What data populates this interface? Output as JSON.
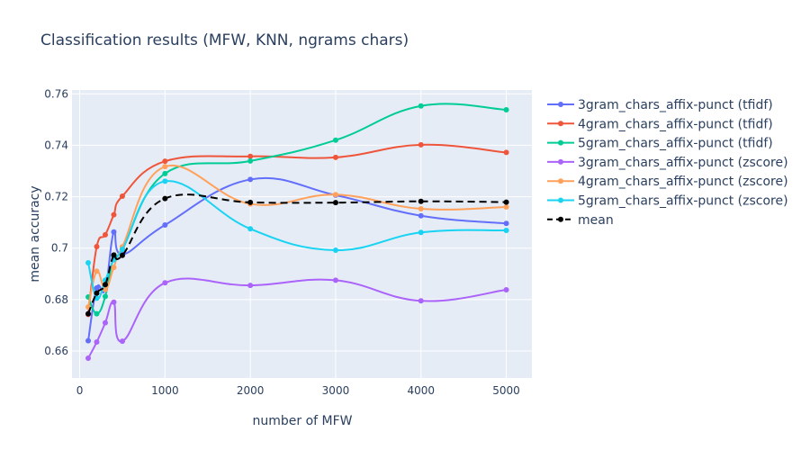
{
  "chart_data": {
    "type": "line",
    "title": "Classification results (MFW, KNN, ngrams chars)",
    "xlabel": "number of MFW",
    "ylabel": "mean accuracy",
    "xlim": [
      -90,
      5300
    ],
    "ylim": [
      0.6495,
      0.7615
    ],
    "xticks": [
      0,
      1000,
      2000,
      3000,
      4000,
      5000
    ],
    "xtick_labels": [
      "0",
      "1000",
      "2000",
      "3000",
      "4000",
      "5000"
    ],
    "yticks": [
      0.66,
      0.68,
      0.7,
      0.72,
      0.74,
      0.76
    ],
    "ytick_labels": [
      "0.66",
      "0.68",
      "0.7",
      "0.72",
      "0.74",
      "0.76"
    ],
    "grid": true,
    "legend_position": "right",
    "x": [
      100,
      200,
      300,
      400,
      500,
      1000,
      2000,
      3000,
      4000,
      5000
    ],
    "series": [
      {
        "name": "3gram_chars_affix-punct (tfidf)",
        "color": "#636efa",
        "dash": "solid",
        "values": [
          0.664,
          0.6845,
          0.684,
          0.7063,
          0.6975,
          0.709,
          0.7267,
          0.7206,
          0.7126,
          0.7096
        ]
      },
      {
        "name": "4gram_chars_affix-punct (tfidf)",
        "color": "#ef553b",
        "dash": "solid",
        "values": [
          0.6742,
          0.7006,
          0.7052,
          0.713,
          0.7202,
          0.7338,
          0.7357,
          0.7353,
          0.7402,
          0.7372
        ]
      },
      {
        "name": "5gram_chars_affix-punct (tfidf)",
        "color": "#00cc96",
        "dash": "solid",
        "values": [
          0.681,
          0.6745,
          0.6812,
          0.6969,
          0.6996,
          0.729,
          0.7339,
          0.742,
          0.7553,
          0.7538
        ]
      },
      {
        "name": "3gram_chars_affix-punct (zscore)",
        "color": "#ab63fa",
        "dash": "solid",
        "values": [
          0.6572,
          0.6635,
          0.671,
          0.679,
          0.6638,
          0.6865,
          0.6855,
          0.6875,
          0.6795,
          0.6838
        ]
      },
      {
        "name": "4gram_chars_affix-punct (zscore)",
        "color": "#ffa15a",
        "dash": "solid",
        "values": [
          0.6771,
          0.691,
          0.6839,
          0.6925,
          0.7005,
          0.7317,
          0.7172,
          0.7208,
          0.7153,
          0.716
        ]
      },
      {
        "name": "5gram_chars_affix-punct (zscore)",
        "color": "#19d3f3",
        "dash": "solid",
        "values": [
          0.6943,
          0.6805,
          0.6875,
          0.6955,
          0.6995,
          0.726,
          0.7075,
          0.6992,
          0.7061,
          0.7069
        ]
      },
      {
        "name": "mean",
        "color": "#000000",
        "dash": "dashed",
        "values": [
          0.6745,
          0.6825,
          0.6858,
          0.6973,
          0.6972,
          0.7193,
          0.7178,
          0.7177,
          0.7182,
          0.7179
        ]
      }
    ]
  }
}
